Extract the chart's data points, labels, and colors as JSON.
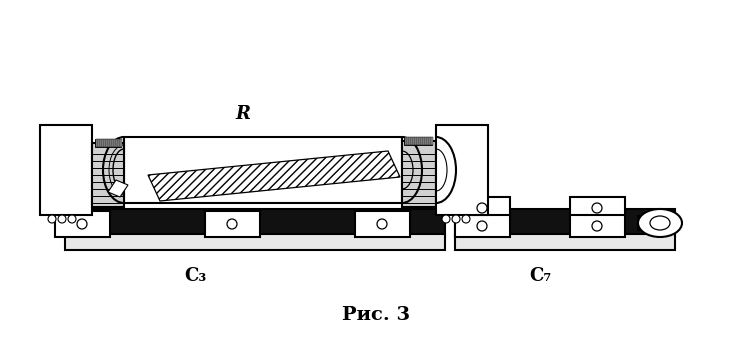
{
  "title": "Рис. 3",
  "label_C3": "C₃",
  "label_C7": "C₇",
  "label_R": "R",
  "bg_color": "#ffffff",
  "line_color": "#000000",
  "figsize": [
    7.53,
    3.45
  ],
  "dpi": 100
}
